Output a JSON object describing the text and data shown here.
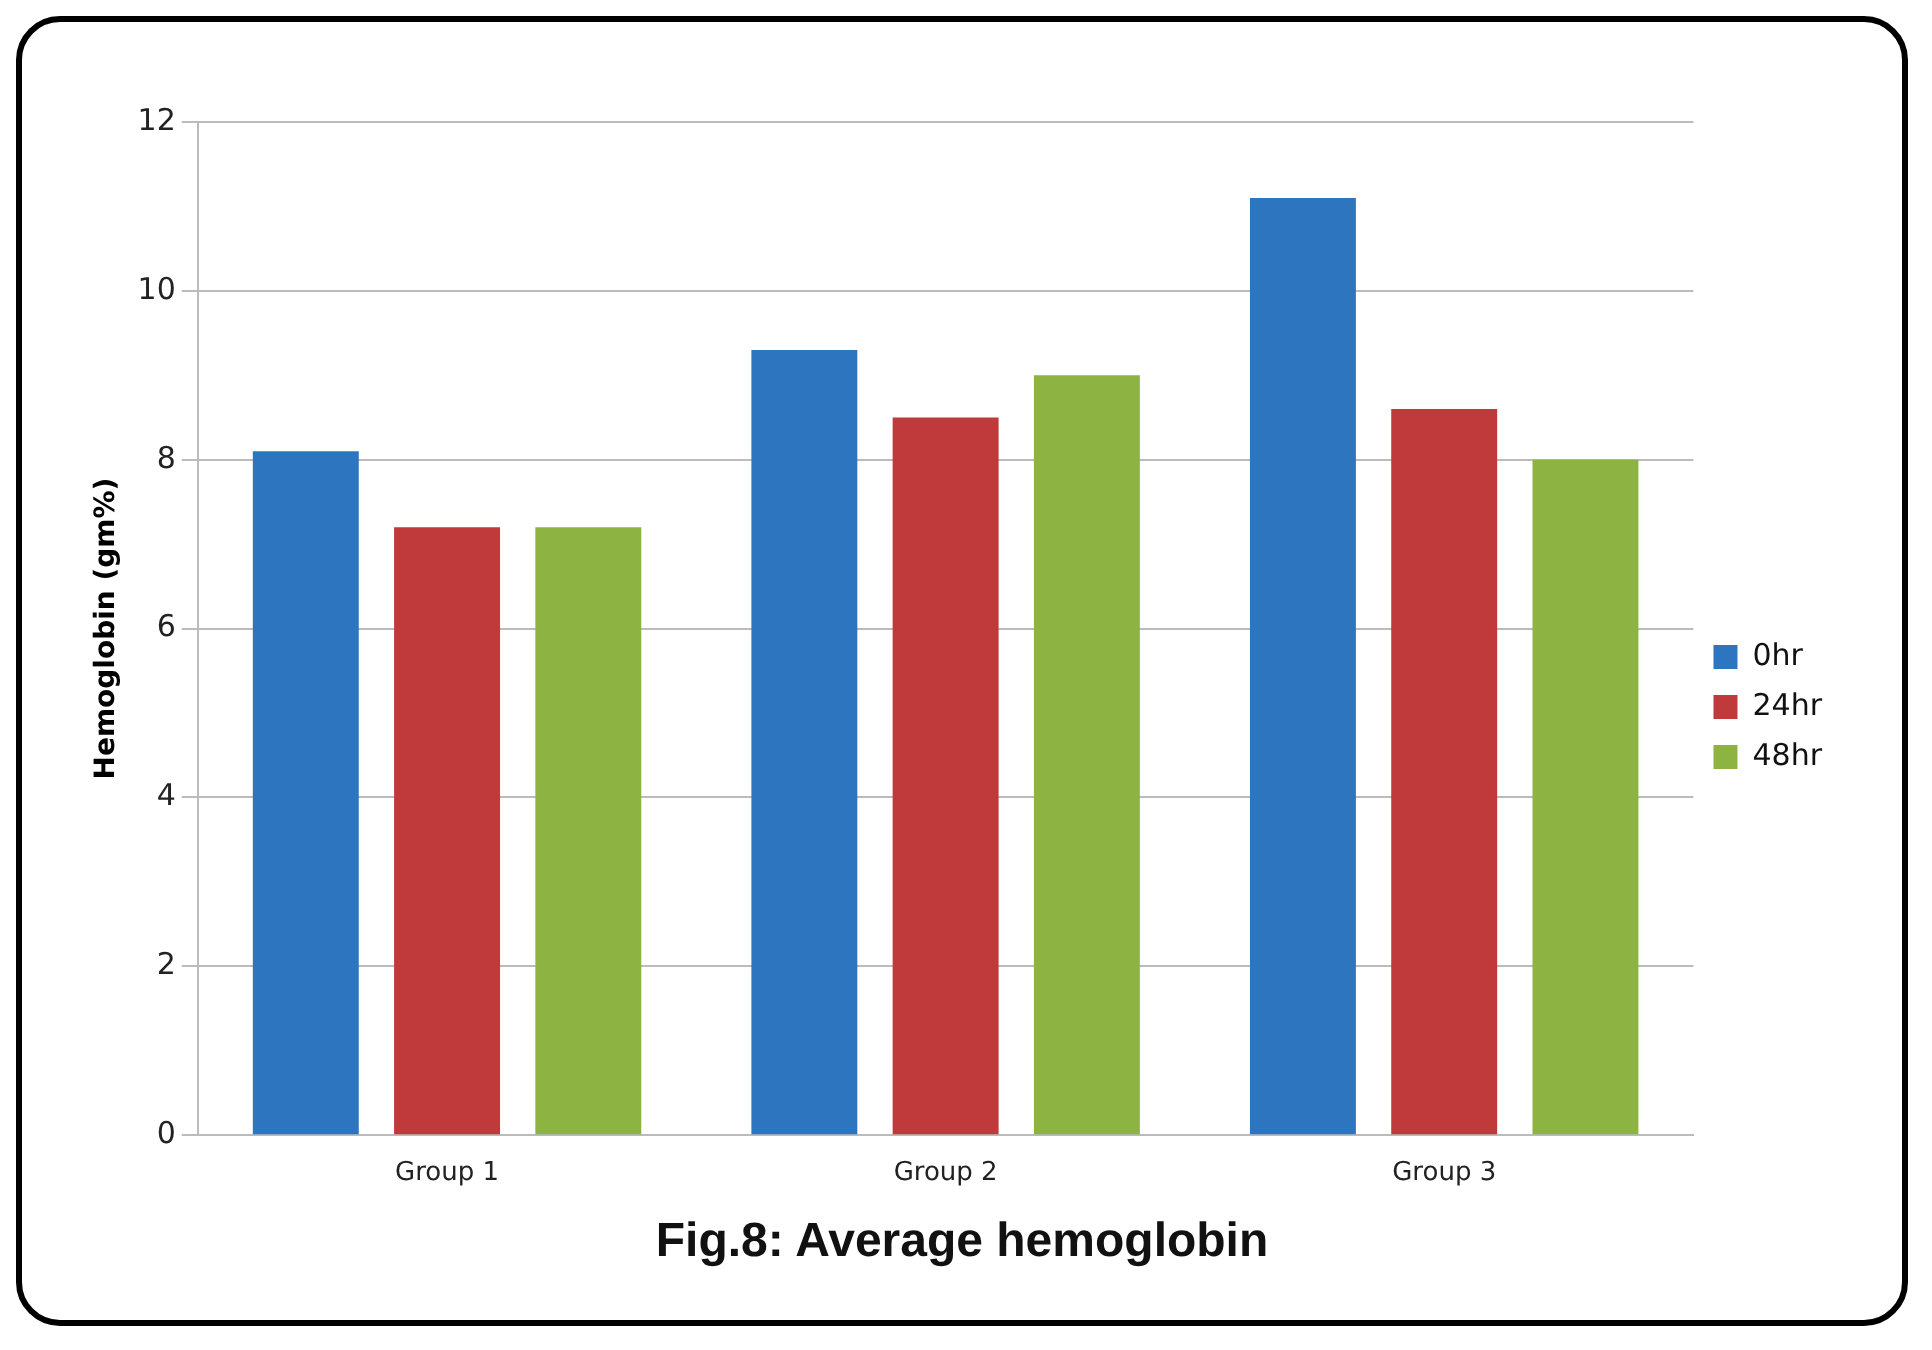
{
  "chart_data": {
    "type": "bar",
    "title": "Fig.8: Average hemoglobin",
    "ylabel": "Hemoglobin (gm%)",
    "categories": [
      "Group 1",
      "Group 2",
      "Group 3"
    ],
    "series": [
      {
        "name": "0hr",
        "color": "#2e75c0",
        "values": [
          8.1,
          9.3,
          11.1
        ]
      },
      {
        "name": "24hr",
        "color": "#c0393b",
        "values": [
          7.2,
          8.5,
          8.6
        ]
      },
      {
        "name": "48hr",
        "color": "#8db443",
        "values": [
          7.2,
          9.0,
          8.0
        ]
      }
    ],
    "ylim": [
      0,
      12
    ],
    "yticks": [
      0,
      2,
      4,
      6,
      8,
      10,
      12
    ],
    "grid": "y",
    "legend": "right"
  }
}
